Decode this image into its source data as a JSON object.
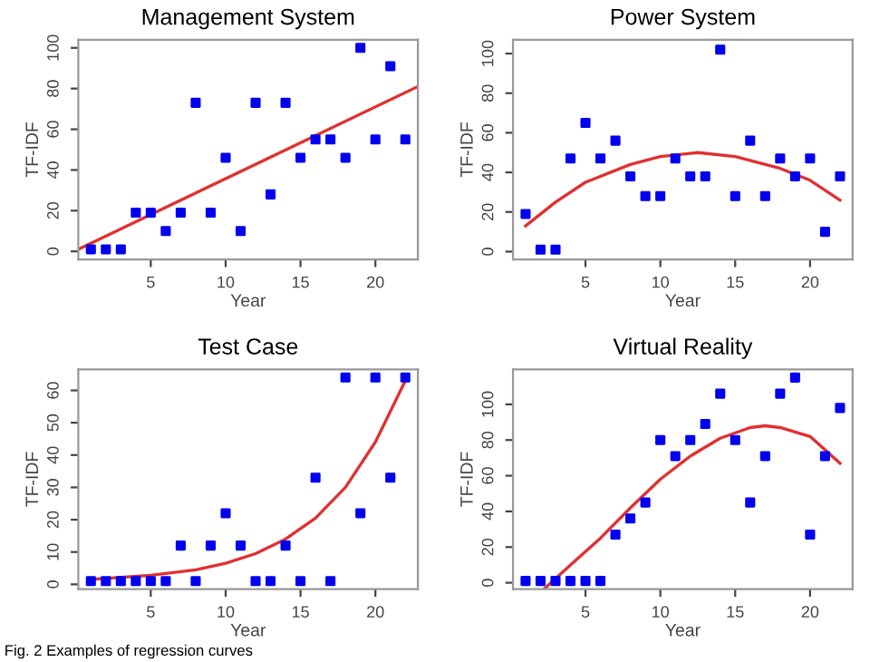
{
  "chart_data": [
    {
      "type": "scatter",
      "title": "Management System",
      "xlabel": "Year",
      "ylabel": "TF-IDF",
      "xlim": [
        0.16,
        22.84
      ],
      "ylim": [
        -4,
        104
      ],
      "xticks": [
        5,
        10,
        15,
        20
      ],
      "yticks": [
        0,
        20,
        40,
        60,
        80,
        100
      ],
      "grid": false,
      "series": [
        {
          "color": "#0000ee",
          "marker": "square",
          "x": [
            1,
            2,
            3,
            4,
            5,
            6,
            7,
            8,
            9,
            10,
            11,
            12,
            13,
            14,
            15,
            16,
            17,
            18,
            19,
            20,
            21,
            22
          ],
          "values": [
            1,
            1,
            1,
            19,
            19,
            10,
            19,
            73,
            19,
            46,
            10,
            73,
            28,
            73,
            46,
            55,
            55,
            46,
            100,
            55,
            91,
            55
          ]
        },
        {
          "type": "line",
          "marker": "none",
          "color": "#e03030",
          "x": [
            0.16,
            22.84
          ],
          "values": [
            1,
            81
          ]
        }
      ]
    },
    {
      "type": "scatter",
      "title": "Power System",
      "xlabel": "Year",
      "ylabel": "TF-IDF",
      "xlim": [
        0.16,
        22.84
      ],
      "ylim": [
        -4,
        107
      ],
      "xticks": [
        5,
        10,
        15,
        20
      ],
      "yticks": [
        0,
        20,
        40,
        60,
        80,
        100
      ],
      "grid": false,
      "series": [
        {
          "color": "#0000ee",
          "marker": "square",
          "x": [
            1,
            2,
            3,
            4,
            5,
            6,
            7,
            8,
            9,
            10,
            11,
            12,
            13,
            14,
            15,
            16,
            17,
            18,
            19,
            20,
            21,
            22
          ],
          "values": [
            19,
            1,
            1,
            47,
            65,
            47,
            56,
            38,
            28,
            28,
            47,
            38,
            38,
            102,
            28,
            56,
            28,
            47,
            38,
            47,
            10,
            38
          ]
        },
        {
          "type": "line",
          "marker": "none",
          "color": "#e03030",
          "x": [
            1,
            3,
            5,
            8,
            10,
            12.5,
            15,
            18,
            20,
            22
          ],
          "values": [
            13,
            25,
            35,
            44,
            48,
            50,
            48,
            42,
            36,
            26
          ]
        }
      ]
    },
    {
      "type": "scatter",
      "title": "Test Case",
      "xlabel": "Year",
      "ylabel": "TF-IDF",
      "xlim": [
        0.16,
        22.84
      ],
      "ylim": [
        -1.5,
        66.5
      ],
      "xticks": [
        5,
        10,
        15,
        20
      ],
      "yticks": [
        0,
        10,
        20,
        30,
        40,
        50,
        60
      ],
      "grid": false,
      "annotations": [
        "Fig. 2 Examples of regression curves"
      ],
      "series": [
        {
          "color": "#0000ee",
          "marker": "square",
          "x": [
            1,
            2,
            3,
            4,
            5,
            6,
            7,
            8,
            9,
            10,
            11,
            12,
            13,
            14,
            15,
            16,
            17,
            18,
            19,
            20,
            21,
            22
          ],
          "values": [
            1,
            1,
            1,
            1,
            1,
            1,
            12,
            1,
            12,
            22,
            12,
            1,
            1,
            12,
            1,
            33,
            1,
            64,
            22,
            64,
            33,
            64
          ]
        },
        {
          "type": "line",
          "marker": "none",
          "color": "#e03030",
          "x": [
            1,
            5,
            8,
            10,
            12,
            14,
            16,
            18,
            20,
            22
          ],
          "values": [
            1.5,
            2.8,
            4.5,
            6.5,
            9.5,
            14,
            20.5,
            30,
            44,
            63
          ]
        }
      ]
    },
    {
      "type": "scatter",
      "title": "Virtual Reality",
      "xlabel": "Year",
      "ylabel": "TF-IDF",
      "xlim": [
        0.16,
        22.84
      ],
      "ylim": [
        -3.6,
        119.6
      ],
      "xticks": [
        5,
        10,
        15,
        20
      ],
      "yticks": [
        0,
        20,
        40,
        60,
        80,
        100
      ],
      "grid": false,
      "series": [
        {
          "color": "#0000ee",
          "marker": "square",
          "x": [
            1,
            2,
            3,
            4,
            5,
            6,
            7,
            8,
            9,
            10,
            11,
            12,
            13,
            14,
            15,
            16,
            17,
            18,
            19,
            20,
            21,
            22
          ],
          "values": [
            1,
            1,
            1,
            1,
            1,
            1,
            27,
            36,
            45,
            80,
            71,
            80,
            89,
            106,
            80,
            45,
            71,
            106,
            115,
            27,
            71,
            98
          ]
        },
        {
          "type": "line",
          "marker": "none",
          "color": "#e03030",
          "x": [
            2.3,
            4,
            6,
            8,
            10,
            12,
            14,
            16,
            17,
            18,
            20,
            22
          ],
          "values": [
            -3,
            10,
            25,
            42,
            58,
            71,
            81,
            87,
            88,
            87,
            82,
            67
          ]
        }
      ]
    }
  ]
}
